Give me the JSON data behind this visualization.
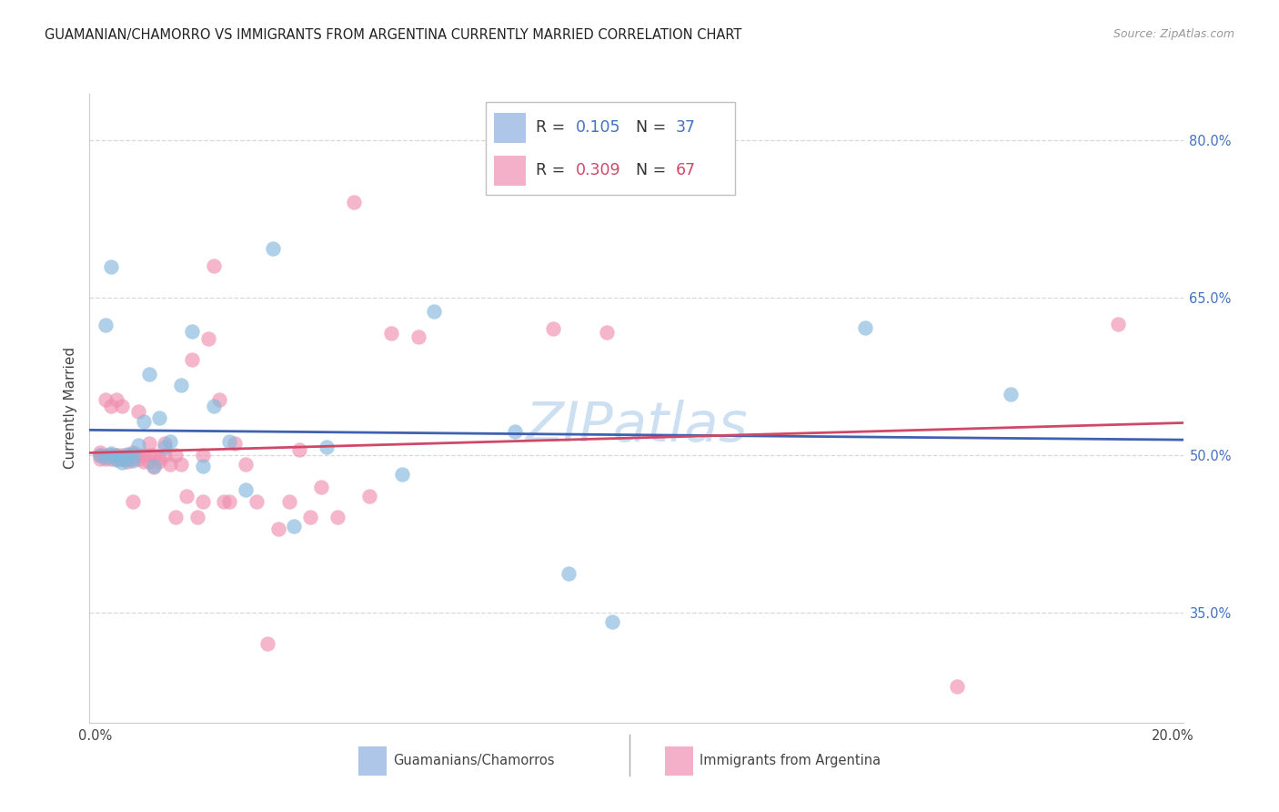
{
  "title": "GUAMANIAN/CHAMORRO VS IMMIGRANTS FROM ARGENTINA CURRENTLY MARRIED CORRELATION CHART",
  "source": "Source: ZipAtlas.com",
  "ylabel": "Currently Married",
  "yticks": [
    0.35,
    0.5,
    0.65,
    0.8
  ],
  "ytick_labels": [
    "35.0%",
    "50.0%",
    "65.0%",
    "80.0%"
  ],
  "xlim": [
    -0.001,
    0.202
  ],
  "ylim": [
    0.245,
    0.845
  ],
  "legend1_color": "#aec6e8",
  "legend2_color": "#f4b0c8",
  "blue_scatter_color": "#85b8dc",
  "pink_scatter_color": "#f090b0",
  "blue_line_color": "#4060b0",
  "pink_line_color": "#d04868",
  "watermark_color": "#c8ddf0",
  "watermark_text": "ZIPatlas",
  "R_blue": 0.105,
  "N_blue": 37,
  "R_pink": 0.309,
  "N_pink": 67,
  "legend_R_color_blue": "#4472c4",
  "legend_R_color_pink": "#d04868",
  "blue_x": [
    0.001,
    0.002,
    0.003,
    0.003,
    0.004,
    0.004,
    0.005,
    0.005,
    0.006,
    0.006,
    0.007,
    0.007,
    0.008,
    0.009,
    0.01,
    0.011,
    0.012,
    0.013,
    0.014,
    0.016,
    0.018,
    0.02,
    0.022,
    0.025,
    0.028,
    0.033,
    0.037,
    0.043,
    0.057,
    0.063,
    0.078,
    0.088,
    0.096,
    0.143,
    0.17,
    0.002,
    0.003
  ],
  "blue_y": [
    0.5,
    0.498,
    0.5,
    0.502,
    0.496,
    0.5,
    0.497,
    0.493,
    0.497,
    0.501,
    0.495,
    0.501,
    0.51,
    0.532,
    0.577,
    0.49,
    0.536,
    0.508,
    0.513,
    0.567,
    0.618,
    0.49,
    0.547,
    0.513,
    0.467,
    0.697,
    0.432,
    0.508,
    0.482,
    0.637,
    0.523,
    0.387,
    0.341,
    0.622,
    0.558,
    0.624,
    0.68
  ],
  "pink_x": [
    0.001,
    0.001,
    0.001,
    0.002,
    0.002,
    0.002,
    0.003,
    0.003,
    0.003,
    0.004,
    0.004,
    0.004,
    0.005,
    0.005,
    0.005,
    0.006,
    0.006,
    0.006,
    0.007,
    0.007,
    0.007,
    0.008,
    0.008,
    0.008,
    0.009,
    0.009,
    0.01,
    0.01,
    0.01,
    0.011,
    0.011,
    0.012,
    0.012,
    0.013,
    0.013,
    0.014,
    0.015,
    0.015,
    0.016,
    0.017,
    0.018,
    0.019,
    0.02,
    0.02,
    0.021,
    0.022,
    0.023,
    0.024,
    0.025,
    0.026,
    0.028,
    0.03,
    0.032,
    0.034,
    0.036,
    0.038,
    0.04,
    0.042,
    0.045,
    0.048,
    0.051,
    0.055,
    0.06,
    0.085,
    0.095,
    0.16,
    0.19
  ],
  "pink_y": [
    0.497,
    0.5,
    0.503,
    0.497,
    0.5,
    0.553,
    0.497,
    0.5,
    0.547,
    0.497,
    0.5,
    0.553,
    0.497,
    0.5,
    0.547,
    0.494,
    0.497,
    0.5,
    0.456,
    0.497,
    0.503,
    0.497,
    0.5,
    0.542,
    0.494,
    0.5,
    0.494,
    0.5,
    0.511,
    0.489,
    0.5,
    0.497,
    0.494,
    0.5,
    0.511,
    0.491,
    0.441,
    0.5,
    0.491,
    0.461,
    0.591,
    0.441,
    0.456,
    0.5,
    0.611,
    0.681,
    0.553,
    0.456,
    0.456,
    0.511,
    0.491,
    0.456,
    0.32,
    0.43,
    0.456,
    0.505,
    0.441,
    0.47,
    0.441,
    0.741,
    0.461,
    0.616,
    0.613,
    0.621,
    0.617,
    0.28,
    0.625
  ]
}
